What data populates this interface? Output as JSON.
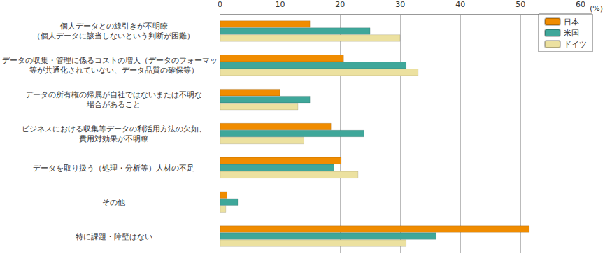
{
  "chart_data": {
    "type": "bar",
    "orientation": "horizontal",
    "categories": [
      "個人データとの線引きが不明瞭\n（個人データに該当しないという判断が困難）",
      "データの収集・管理に係るコストの増大（データのフォーマット\n等が共通化されていない、データ品質の確保等）",
      "データの所有権の帰属が自社ではないまたは不明な\n場合があること",
      "ビジネスにおける収集等データの利活用方法の欠如、\n費用対効果が不明瞭",
      "データを取り扱う（処理・分析等）人材の不足",
      "その他",
      "特に課題・障壁はない"
    ],
    "series": [
      {
        "name": "日本",
        "color": "#f08c00",
        "values": [
          15,
          20.6,
          10,
          18.5,
          20.2,
          1.2,
          51.5
        ]
      },
      {
        "name": "米国",
        "color": "#3fa79a",
        "values": [
          25,
          31,
          15,
          24,
          19,
          3,
          36
        ]
      },
      {
        "name": "ドイツ",
        "color": "#ece1a0",
        "values": [
          30,
          33,
          13,
          14,
          23,
          1,
          31
        ]
      }
    ],
    "xlabel": "(%)",
    "xlim": [
      0,
      60
    ],
    "xticks": [
      0,
      10,
      20,
      30,
      40,
      50,
      60
    ],
    "grid": true,
    "legend": "upper right"
  }
}
